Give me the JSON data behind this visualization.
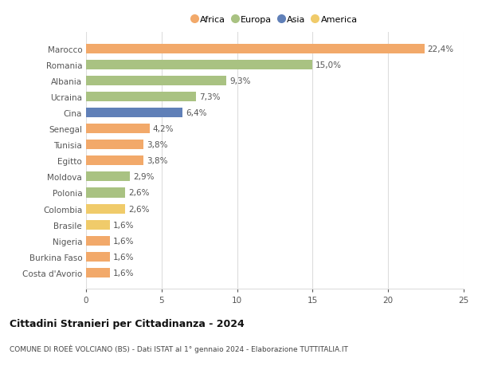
{
  "categories": [
    "Marocco",
    "Romania",
    "Albania",
    "Ucraina",
    "Cina",
    "Senegal",
    "Tunisia",
    "Egitto",
    "Moldova",
    "Polonia",
    "Colombia",
    "Brasile",
    "Nigeria",
    "Burkina Faso",
    "Costa d'Avorio"
  ],
  "values": [
    22.4,
    15.0,
    9.3,
    7.3,
    6.4,
    4.2,
    3.8,
    3.8,
    2.9,
    2.6,
    2.6,
    1.6,
    1.6,
    1.6,
    1.6
  ],
  "labels": [
    "22,4%",
    "15,0%",
    "9,3%",
    "7,3%",
    "6,4%",
    "4,2%",
    "3,8%",
    "3,8%",
    "2,9%",
    "2,6%",
    "2,6%",
    "1,6%",
    "1,6%",
    "1,6%",
    "1,6%"
  ],
  "colors": [
    "#F2A96A",
    "#A9C282",
    "#A9C282",
    "#A9C282",
    "#6080B8",
    "#F2A96A",
    "#F2A96A",
    "#F2A96A",
    "#A9C282",
    "#A9C282",
    "#F0CB6A",
    "#F0CB6A",
    "#F2A96A",
    "#F2A96A",
    "#F2A96A"
  ],
  "legend": [
    {
      "label": "Africa",
      "color": "#F2A96A"
    },
    {
      "label": "Europa",
      "color": "#A9C282"
    },
    {
      "label": "Asia",
      "color": "#6080B8"
    },
    {
      "label": "America",
      "color": "#F0CB6A"
    }
  ],
  "xlim": [
    0,
    25
  ],
  "xticks": [
    0,
    5,
    10,
    15,
    20,
    25
  ],
  "title": "Cittadini Stranieri per Cittadinanza - 2024",
  "subtitle": "COMUNE DI ROEÈ VOLCIANO (BS) - Dati ISTAT al 1° gennaio 2024 - Elaborazione TUTTITALIA.IT",
  "background_color": "#ffffff",
  "grid_color": "#dddddd",
  "bar_height": 0.6,
  "label_fontsize": 7.5,
  "ytick_fontsize": 7.5,
  "xtick_fontsize": 7.5,
  "title_fontsize": 9,
  "subtitle_fontsize": 6.5,
  "legend_fontsize": 8
}
